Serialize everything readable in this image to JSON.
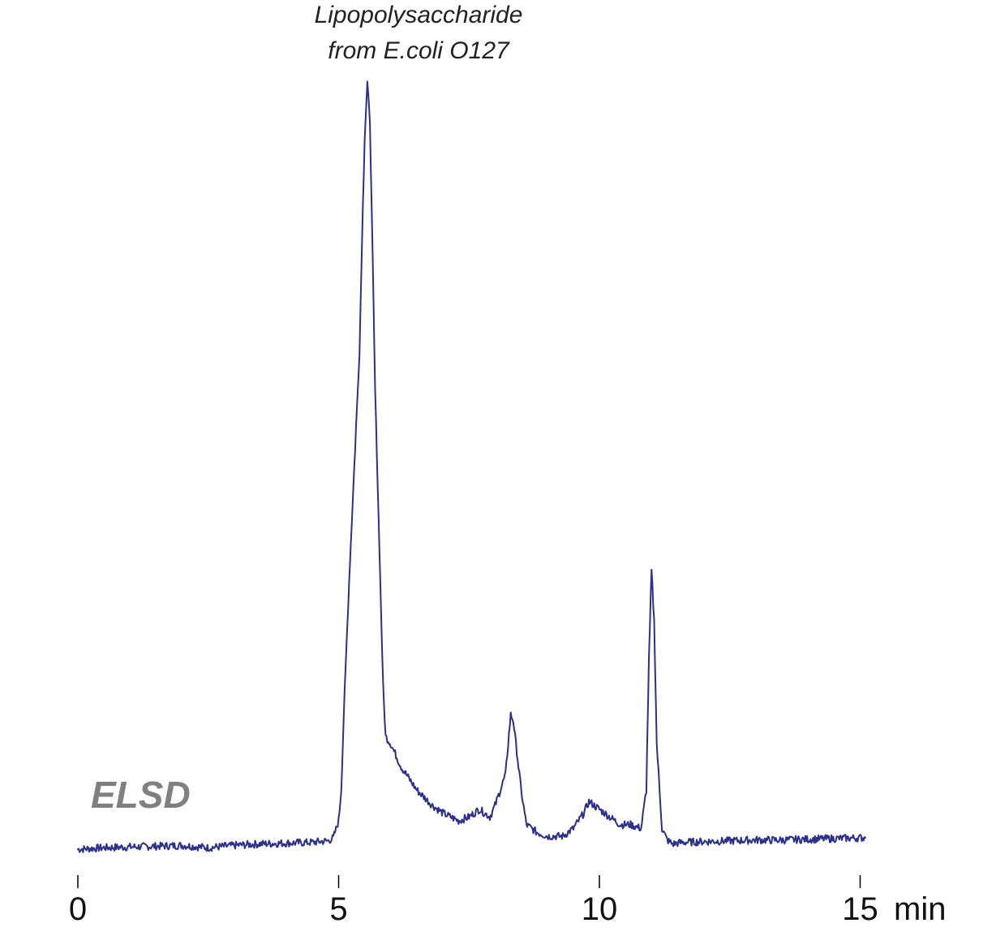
{
  "chart_data": {
    "type": "line",
    "detector_label": "ELSD",
    "peak_annotation": [
      "Lipopolysaccharide",
      "from E.coli O127"
    ],
    "x_ticks": [
      0,
      5,
      10,
      15
    ],
    "x_tick_labels": [
      "0",
      "5",
      "10",
      "15"
    ],
    "x_unit": "min",
    "xlim": [
      0,
      15.1
    ],
    "ylim": [
      0,
      100
    ],
    "y_axis_shown": false,
    "grid": false,
    "line_color": "#2b2f8e",
    "detector_label_color": "#808080",
    "series": [
      {
        "x": [
          0,
          0.5,
          1.0,
          1.5,
          2.0,
          2.5,
          3.0,
          3.5,
          4.0,
          4.5,
          4.8,
          4.9,
          5.0,
          5.05,
          5.1,
          5.2,
          5.3,
          5.4,
          5.45,
          5.5,
          5.55,
          5.6,
          5.65,
          5.7,
          5.8,
          5.85,
          5.9,
          6.0,
          6.2,
          6.5,
          6.8,
          7.0,
          7.3,
          7.5,
          7.7,
          7.8,
          7.9,
          8.0,
          8.1,
          8.2,
          8.25,
          8.3,
          8.35,
          8.4,
          8.5,
          8.6,
          8.8,
          9.0,
          9.3,
          9.5,
          9.7,
          9.8,
          9.9,
          10.0,
          10.2,
          10.4,
          10.6,
          10.8,
          10.9,
          10.95,
          11.0,
          11.05,
          11.1,
          11.2,
          11.3,
          11.4,
          11.6,
          12.0,
          12.5,
          13.0,
          13.5,
          14.0,
          14.5,
          15.1
        ],
        "y": [
          0.3,
          0.5,
          0.6,
          0.7,
          0.8,
          0.5,
          0.8,
          1.0,
          1.1,
          1.2,
          1.4,
          1.8,
          4,
          8,
          18,
          35,
          50,
          65,
          80,
          93,
          100,
          95,
          78,
          60,
          35,
          22,
          15,
          14,
          11,
          8,
          6,
          5,
          4,
          4.5,
          5.5,
          5,
          4.5,
          6,
          8,
          10,
          14,
          17.8,
          17,
          14,
          8,
          3.5,
          2.5,
          2,
          2,
          3,
          5,
          6.5,
          6,
          5.5,
          4.5,
          3.5,
          3.5,
          3,
          8,
          25,
          36.5,
          30,
          14,
          3,
          1.5,
          1.0,
          1.2,
          1.3,
          1.4,
          1.5,
          1.5,
          1.6,
          1.7,
          1.8
        ]
      }
    ]
  }
}
